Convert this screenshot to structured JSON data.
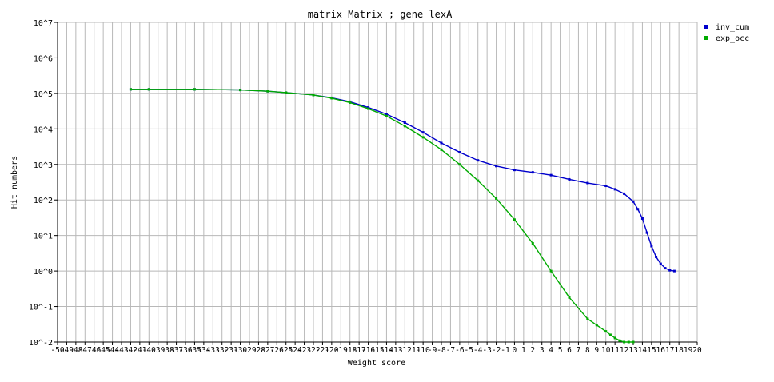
{
  "chart_data": {
    "type": "line",
    "title": "matrix Matrix   ; gene lexA",
    "xlabel": "Weight score",
    "ylabel": "Hit numbers",
    "y_scale": "log",
    "xlim": [
      -50,
      20
    ],
    "ylim_exponents": [
      -2,
      7
    ],
    "grid": true,
    "legend_position": "top-right",
    "x_tick_labels": [
      "-50",
      "-49",
      "-48",
      "-47",
      "-46",
      "-45",
      "-44",
      "-43",
      "-42",
      "-41",
      "-40",
      "-39",
      "-38",
      "-37",
      "-36",
      "-35",
      "-34",
      "-33",
      "-32",
      "-31",
      "-30",
      "-29",
      "-28",
      "-27",
      "-26",
      "-25",
      "-24",
      "-23",
      "-22",
      "-21",
      "-20",
      "-19",
      "-18",
      "-17",
      "-16",
      "-15",
      "-14",
      "-13",
      "-12",
      "-11",
      "-10",
      "-9",
      "-8",
      "-7",
      "-6",
      "-5",
      "-4",
      "-3",
      "-2",
      "-1",
      "0",
      "1",
      "2",
      "3",
      "4",
      "5",
      "6",
      "7",
      "8",
      "9",
      "10",
      "11",
      "12",
      "13",
      "14",
      "15",
      "16",
      "17",
      "18",
      "19",
      "20"
    ],
    "y_tick_labels": [
      "10^-2",
      "10^-1",
      "10^0",
      "10^1",
      "10^2",
      "10^3",
      "10^4",
      "10^5",
      "10^6",
      "10^7"
    ],
    "series": [
      {
        "name": "inv_cum",
        "color": "#0000cc",
        "x": [
          -42,
          -40,
          -35,
          -30,
          -27,
          -25,
          -22,
          -20,
          -18,
          -16,
          -14,
          -12,
          -10,
          -8,
          -6,
          -4,
          -2,
          0,
          2,
          4,
          6,
          8,
          10,
          11,
          12,
          13,
          13.5,
          14,
          14.5,
          15,
          15.5,
          16,
          16.5,
          17,
          17.5
        ],
        "y": [
          130000,
          130000,
          130000,
          125000,
          115000,
          105000,
          90000,
          75000,
          58000,
          40000,
          26000,
          15000,
          8000,
          4000,
          2200,
          1300,
          900,
          700,
          600,
          500,
          380,
          300,
          250,
          200,
          150,
          90,
          55,
          30,
          12,
          5,
          2.5,
          1.6,
          1.2,
          1.05,
          1.0
        ]
      },
      {
        "name": "exp_occ",
        "color": "#00aa00",
        "x": [
          -42,
          -40,
          -35,
          -30,
          -27,
          -25,
          -22,
          -20,
          -18,
          -16,
          -14,
          -12,
          -10,
          -8,
          -6,
          -4,
          -2,
          0,
          2,
          4,
          6,
          8,
          9,
          10,
          10.5,
          11,
          11.5,
          12,
          12.5,
          13
        ],
        "y": [
          130000,
          130000,
          130000,
          125000,
          115000,
          105000,
          90000,
          73000,
          55000,
          37000,
          23000,
          12000,
          5800,
          2600,
          1000,
          350,
          110,
          28,
          6,
          1.0,
          0.18,
          0.045,
          0.03,
          0.02,
          0.016,
          0.013,
          0.011,
          0.01,
          0.01,
          0.01
        ]
      }
    ]
  }
}
